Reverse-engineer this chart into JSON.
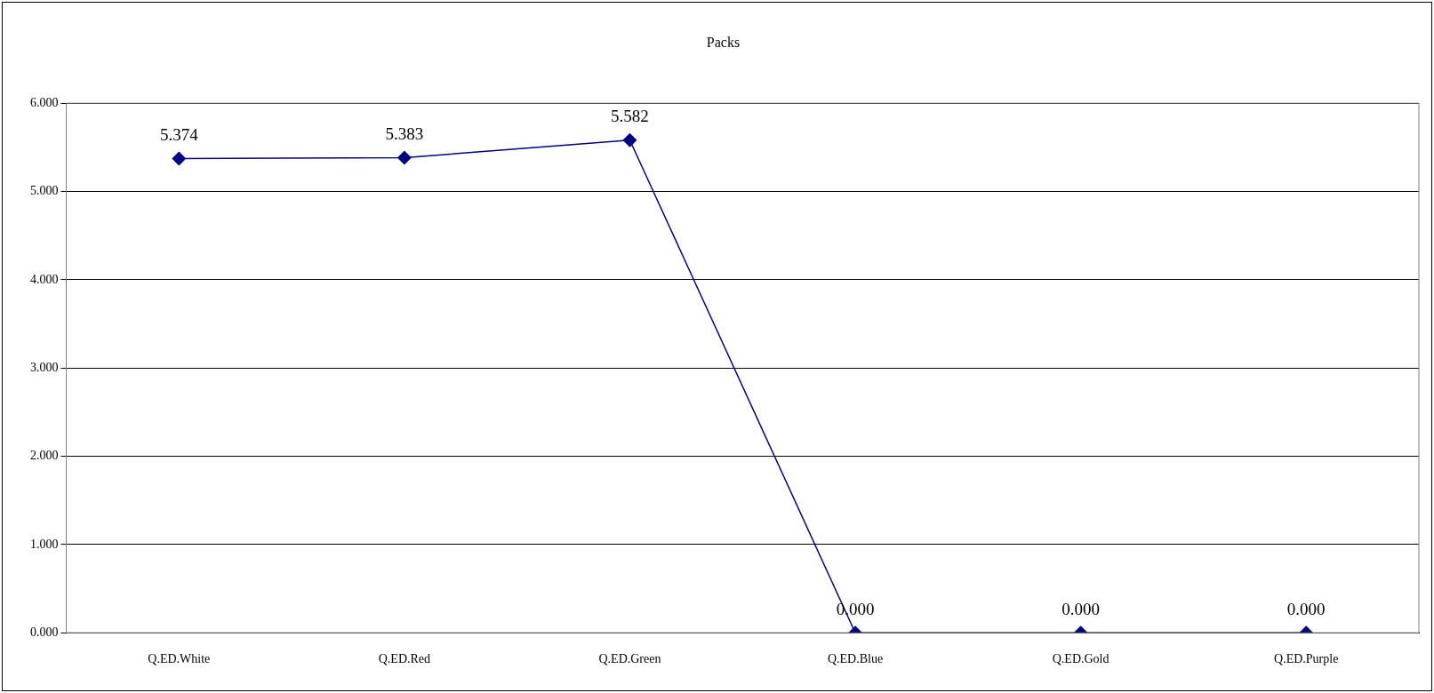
{
  "chart_data": {
    "type": "line",
    "title": "Packs",
    "categories": [
      "Q.ED.White",
      "Q.ED.Red",
      "Q.ED.Green",
      "Q.ED.Blue",
      "Q.ED.Gold",
      "Q.ED.Purple"
    ],
    "series": [
      {
        "color": "#000080",
        "values": [
          5.374,
          5.383,
          5.582,
          0,
          0,
          0
        ],
        "value_labels": [
          "5.374",
          "5.383",
          "5.582",
          "0.000",
          "0.000",
          "0.000"
        ]
      }
    ],
    "ylim": [
      0,
      6
    ],
    "yticks": [
      {
        "value": 0,
        "label": "0.000"
      },
      {
        "value": 1,
        "label": "1.000"
      },
      {
        "value": 2,
        "label": "2.000"
      },
      {
        "value": 3,
        "label": "3.000"
      },
      {
        "value": 4,
        "label": "4.000"
      },
      {
        "value": 5,
        "label": "5.000"
      },
      {
        "value": 6,
        "label": "6.000"
      }
    ],
    "grid": "y",
    "marker": "diamond",
    "line_style": "solid",
    "legend": false
  }
}
